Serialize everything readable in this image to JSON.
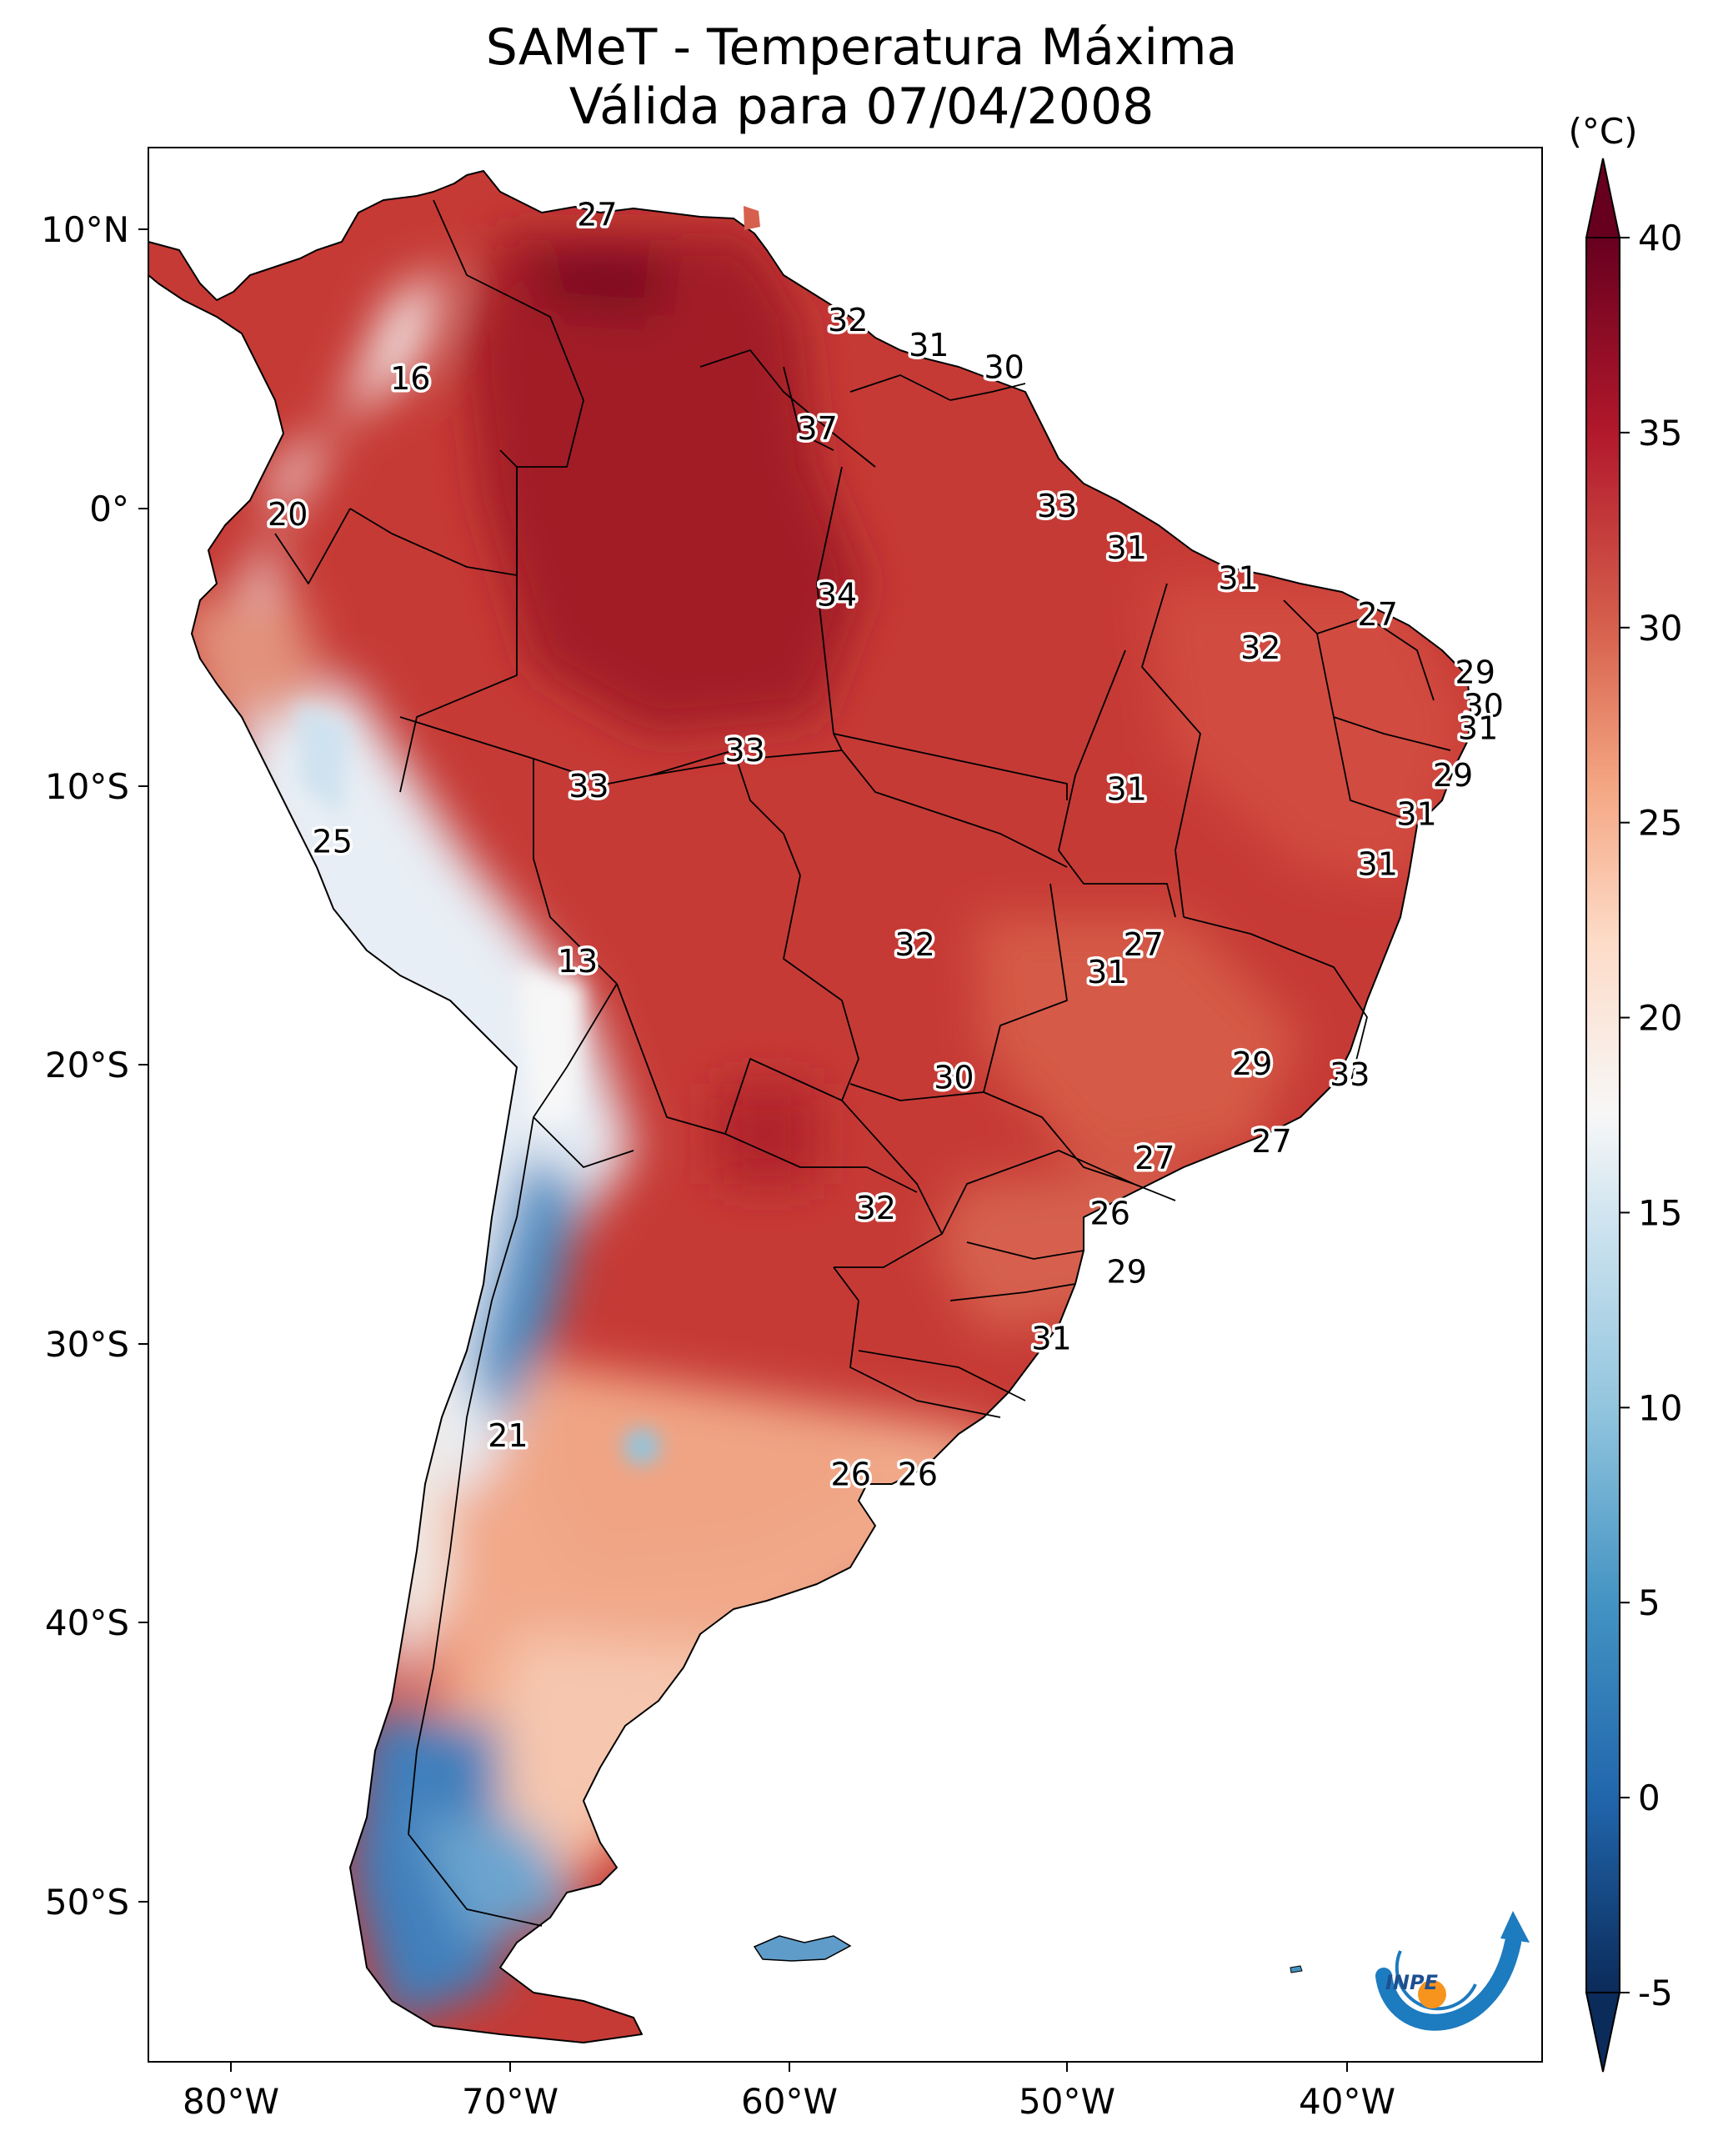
{
  "title": {
    "line1": "SAMeT - Temperatura Máxima",
    "line2": "Válida para 07/04/2008"
  },
  "colorbar": {
    "unit": "(°C)",
    "ticks": [
      "40",
      "35",
      "30",
      "25",
      "20",
      "15",
      "10",
      "5",
      "0",
      "-5"
    ],
    "min": -5,
    "max": 40,
    "extend": "both"
  },
  "axes": {
    "lon_labels": [
      "80°W",
      "70°W",
      "60°W",
      "50°W",
      "40°W"
    ],
    "lat_labels": [
      "10°N",
      "0°",
      "10°S",
      "20°S",
      "30°S",
      "40°S",
      "50°S"
    ],
    "lon_range": [
      -83,
      -33
    ],
    "lat_range": [
      -56,
      13
    ]
  },
  "contour_labels": [
    {
      "text": "27",
      "lon": -66.9,
      "lat": 10.5
    },
    {
      "text": "32",
      "lon": -57.9,
      "lat": 6.7
    },
    {
      "text": "31",
      "lon": -55.0,
      "lat": 5.8
    },
    {
      "text": "30",
      "lon": -52.3,
      "lat": 5.0
    },
    {
      "text": "16",
      "lon": -73.6,
      "lat": 4.6
    },
    {
      "text": "37",
      "lon": -59.0,
      "lat": 2.8
    },
    {
      "text": "20",
      "lon": -78.0,
      "lat": -0.3
    },
    {
      "text": "33",
      "lon": -50.4,
      "lat": 0.0
    },
    {
      "text": "31",
      "lon": -47.9,
      "lat": -1.5
    },
    {
      "text": "31",
      "lon": -43.9,
      "lat": -2.6
    },
    {
      "text": "34",
      "lon": -58.3,
      "lat": -3.2
    },
    {
      "text": "27",
      "lon": -38.9,
      "lat": -3.9
    },
    {
      "text": "32",
      "lon": -43.1,
      "lat": -5.1
    },
    {
      "text": "29",
      "lon": -35.4,
      "lat": -6.0
    },
    {
      "text": "30",
      "lon": -35.1,
      "lat": -7.2
    },
    {
      "text": "31",
      "lon": -35.3,
      "lat": -8.0
    },
    {
      "text": "33",
      "lon": -61.6,
      "lat": -8.8
    },
    {
      "text": "33",
      "lon": -67.2,
      "lat": -10.1
    },
    {
      "text": "31",
      "lon": -47.9,
      "lat": -10.2
    },
    {
      "text": "29",
      "lon": -36.2,
      "lat": -9.7
    },
    {
      "text": "31",
      "lon": -37.5,
      "lat": -11.1
    },
    {
      "text": "25",
      "lon": -76.4,
      "lat": -12.1
    },
    {
      "text": "31",
      "lon": -38.9,
      "lat": -12.9
    },
    {
      "text": "13",
      "lon": -67.6,
      "lat": -16.4
    },
    {
      "text": "32",
      "lon": -55.5,
      "lat": -15.8
    },
    {
      "text": "27",
      "lon": -47.3,
      "lat": -15.8
    },
    {
      "text": "31",
      "lon": -48.6,
      "lat": -16.8
    },
    {
      "text": "29",
      "lon": -43.4,
      "lat": -20.1
    },
    {
      "text": "30",
      "lon": -54.1,
      "lat": -20.6
    },
    {
      "text": "33",
      "lon": -39.9,
      "lat": -20.5
    },
    {
      "text": "27",
      "lon": -46.9,
      "lat": -23.5
    },
    {
      "text": "27",
      "lon": -42.7,
      "lat": -22.9
    },
    {
      "text": "26",
      "lon": -48.5,
      "lat": -25.5
    },
    {
      "text": "32",
      "lon": -56.9,
      "lat": -25.3
    },
    {
      "text": "29",
      "lon": -47.9,
      "lat": -27.6
    },
    {
      "text": "31",
      "lon": -50.6,
      "lat": -30.0
    },
    {
      "text": "21",
      "lon": -70.1,
      "lat": -33.5
    },
    {
      "text": "26",
      "lon": -57.8,
      "lat": -34.9
    },
    {
      "text": "26",
      "lon": -55.4,
      "lat": -34.9
    }
  ],
  "logo": {
    "text": "INPE",
    "accent": "#f7941d",
    "blue": "#1d7bbf"
  },
  "palette": {
    "stops": [
      {
        "v": -5,
        "c": "#0b2b5a"
      },
      {
        "v": 0,
        "c": "#2166ac"
      },
      {
        "v": 5,
        "c": "#4393c3"
      },
      {
        "v": 10,
        "c": "#92c5de"
      },
      {
        "v": 15,
        "c": "#d1e5f0"
      },
      {
        "v": 17.5,
        "c": "#f7f7f7"
      },
      {
        "v": 22,
        "c": "#fddbc7"
      },
      {
        "v": 26,
        "c": "#f4a582"
      },
      {
        "v": 30,
        "c": "#d6604d"
      },
      {
        "v": 35,
        "c": "#b2182b"
      },
      {
        "v": 40,
        "c": "#67001f"
      }
    ]
  }
}
